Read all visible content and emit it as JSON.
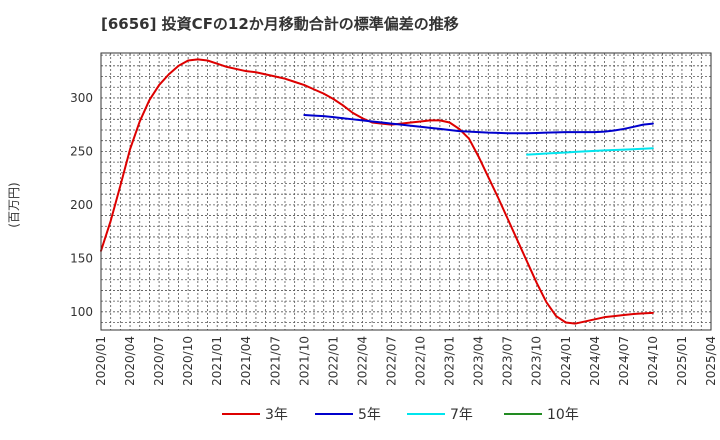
{
  "chart_data": {
    "type": "line",
    "title": "[6656]  投資CFの12か月移動合計の標準偏差の推移",
    "ylabel": "(百万円)",
    "xlabel": "",
    "x_ticks": [
      "2020/01",
      "2020/04",
      "2020/07",
      "2020/10",
      "2021/01",
      "2021/04",
      "2021/07",
      "2021/10",
      "2022/01",
      "2022/04",
      "2022/07",
      "2022/10",
      "2023/01",
      "2023/04",
      "2023/07",
      "2023/10",
      "2024/01",
      "2024/04",
      "2024/07",
      "2024/10",
      "2025/01",
      "2025/04"
    ],
    "y_ticks": [
      100,
      150,
      200,
      250,
      300
    ],
    "xlim": [
      "2020/01",
      "2025/04"
    ],
    "ylim": [
      83,
      342
    ],
    "grid": true,
    "legend_position": "bottom",
    "series": [
      {
        "name": "3年",
        "color": "#dd0000",
        "points": [
          [
            "2020/01",
            157
          ],
          [
            "2020/02",
            185
          ],
          [
            "2020/03",
            218
          ],
          [
            "2020/04",
            252
          ],
          [
            "2020/05",
            278
          ],
          [
            "2020/06",
            298
          ],
          [
            "2020/07",
            312
          ],
          [
            "2020/08",
            322
          ],
          [
            "2020/09",
            330
          ],
          [
            "2020/10",
            335
          ],
          [
            "2020/11",
            336
          ],
          [
            "2020/12",
            335
          ],
          [
            "2021/01",
            332
          ],
          [
            "2021/02",
            329
          ],
          [
            "2021/03",
            327
          ],
          [
            "2021/04",
            325
          ],
          [
            "2021/05",
            324
          ],
          [
            "2021/06",
            322
          ],
          [
            "2021/07",
            320
          ],
          [
            "2021/08",
            318
          ],
          [
            "2021/09",
            315
          ],
          [
            "2021/10",
            312
          ],
          [
            "2021/11",
            308
          ],
          [
            "2021/12",
            304
          ],
          [
            "2022/01",
            299
          ],
          [
            "2022/02",
            293
          ],
          [
            "2022/03",
            286
          ],
          [
            "2022/04",
            281
          ],
          [
            "2022/05",
            277
          ],
          [
            "2022/06",
            276
          ],
          [
            "2022/07",
            275
          ],
          [
            "2022/08",
            276
          ],
          [
            "2022/09",
            277
          ],
          [
            "2022/10",
            278
          ],
          [
            "2022/11",
            279
          ],
          [
            "2022/12",
            279
          ],
          [
            "2023/01",
            277
          ],
          [
            "2023/02",
            271
          ],
          [
            "2023/03",
            262
          ],
          [
            "2023/04",
            245
          ],
          [
            "2023/05",
            226
          ],
          [
            "2023/06",
            207
          ],
          [
            "2023/07",
            187
          ],
          [
            "2023/08",
            167
          ],
          [
            "2023/09",
            147
          ],
          [
            "2023/10",
            127
          ],
          [
            "2023/11",
            109
          ],
          [
            "2023/12",
            96
          ],
          [
            "2024/01",
            90
          ],
          [
            "2024/02",
            89
          ],
          [
            "2024/03",
            91
          ],
          [
            "2024/04",
            93
          ],
          [
            "2024/05",
            95
          ],
          [
            "2024/06",
            96
          ],
          [
            "2024/07",
            97
          ],
          [
            "2024/08",
            98
          ],
          [
            "2024/09",
            98.5
          ],
          [
            "2024/10",
            99
          ]
        ]
      },
      {
        "name": "5年",
        "color": "#0000cc",
        "points": [
          [
            "2021/10",
            284
          ],
          [
            "2021/11",
            283.5
          ],
          [
            "2021/12",
            283
          ],
          [
            "2022/01",
            282
          ],
          [
            "2022/02",
            281
          ],
          [
            "2022/03",
            280
          ],
          [
            "2022/04",
            279
          ],
          [
            "2022/05",
            278
          ],
          [
            "2022/06",
            277
          ],
          [
            "2022/07",
            276
          ],
          [
            "2022/08",
            275
          ],
          [
            "2022/09",
            274
          ],
          [
            "2022/10",
            273
          ],
          [
            "2022/11",
            272
          ],
          [
            "2022/12",
            271
          ],
          [
            "2023/01",
            270
          ],
          [
            "2023/02",
            269
          ],
          [
            "2023/03",
            268.5
          ],
          [
            "2023/04",
            268
          ],
          [
            "2023/05",
            267.5
          ],
          [
            "2023/06",
            267.3
          ],
          [
            "2023/07",
            267
          ],
          [
            "2023/08",
            267
          ],
          [
            "2023/09",
            267
          ],
          [
            "2023/10",
            267.2
          ],
          [
            "2023/11",
            267.5
          ],
          [
            "2023/12",
            267.8
          ],
          [
            "2024/01",
            268
          ],
          [
            "2024/02",
            268
          ],
          [
            "2024/03",
            268
          ],
          [
            "2024/04",
            268
          ],
          [
            "2024/05",
            268.5
          ],
          [
            "2024/06",
            269.5
          ],
          [
            "2024/07",
            271
          ],
          [
            "2024/08",
            273
          ],
          [
            "2024/09",
            275
          ],
          [
            "2024/10",
            276
          ]
        ]
      },
      {
        "name": "7年",
        "color": "#00e5ee",
        "points": [
          [
            "2023/09",
            247
          ],
          [
            "2023/10",
            247.5
          ],
          [
            "2023/11",
            248
          ],
          [
            "2023/12",
            248.5
          ],
          [
            "2024/01",
            249
          ],
          [
            "2024/02",
            249.5
          ],
          [
            "2024/03",
            250
          ],
          [
            "2024/04",
            250.5
          ],
          [
            "2024/05",
            251
          ],
          [
            "2024/06",
            251.3
          ],
          [
            "2024/07",
            251.7
          ],
          [
            "2024/08",
            252
          ],
          [
            "2024/09",
            252.5
          ],
          [
            "2024/10",
            253
          ]
        ]
      },
      {
        "name": "10年",
        "color": "#228b22",
        "points": []
      }
    ]
  }
}
